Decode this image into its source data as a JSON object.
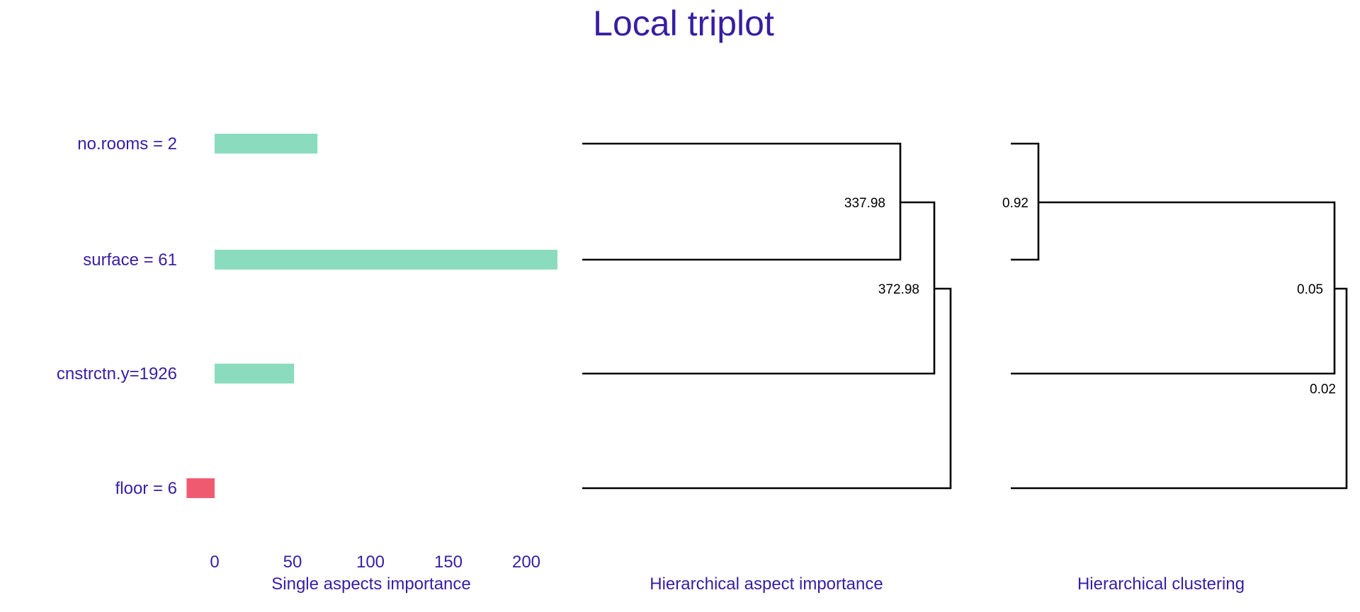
{
  "title": "Local triplot",
  "colors": {
    "text": "#371ea3",
    "positive": "#8bdcbe",
    "negative": "#f05a71",
    "lines": "#000000"
  },
  "chart_data": [
    {
      "type": "bar",
      "orientation": "horizontal",
      "xlabel": "Single aspects importance",
      "categories": [
        "no.rooms = 2",
        "surface = 61",
        "cnstrctn.y=1926",
        "floor = 6"
      ],
      "values": [
        66,
        220,
        51,
        -18
      ],
      "xticks": [
        "0",
        "50",
        "100",
        "150",
        "200"
      ],
      "xlim": [
        -18,
        220
      ],
      "grid": false,
      "legend": "none"
    },
    {
      "type": "dendrogram",
      "xlabel": "Hierarchical aspect importance",
      "node_labels": [
        "337.98",
        "372.98"
      ]
    },
    {
      "type": "dendrogram",
      "xlabel": "Hierarchical clustering",
      "node_labels": [
        "0.92",
        "0.05",
        "0.02"
      ]
    }
  ]
}
